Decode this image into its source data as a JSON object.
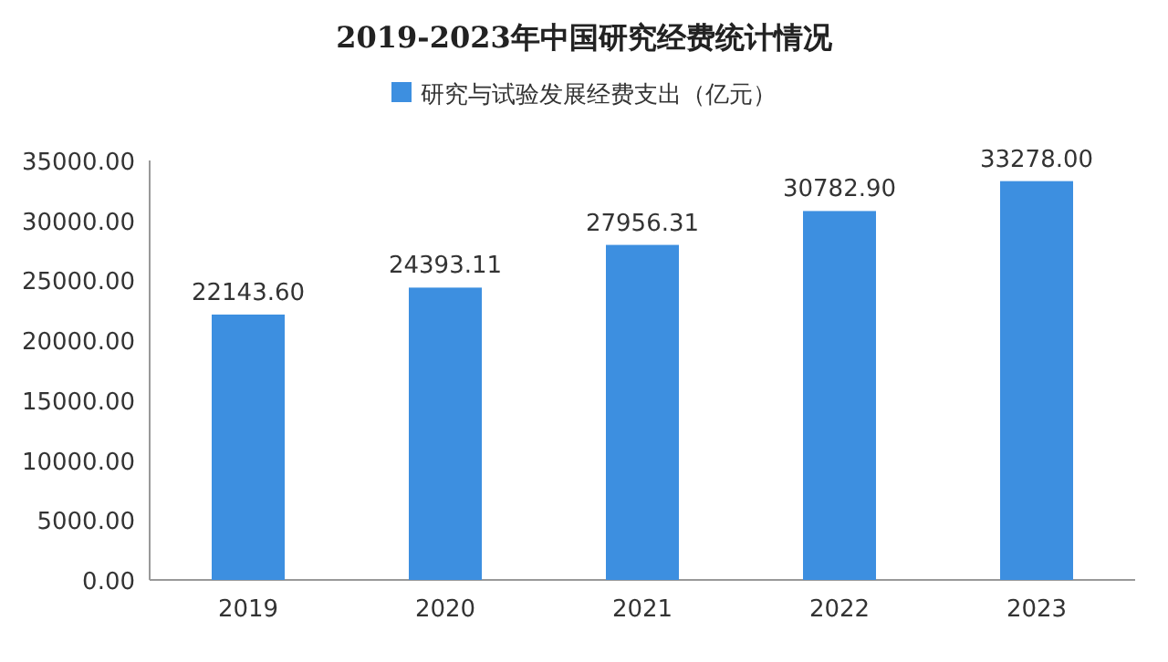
{
  "chart_data": {
    "type": "bar",
    "title": "2019-2023年中国研究经费统计情况",
    "categories": [
      "2019",
      "2020",
      "2021",
      "2022",
      "2023"
    ],
    "series": [
      {
        "name": "研究与试验发展经费支出（亿元）",
        "color": "#3d8fe0",
        "values": [
          22143.6,
          24393.11,
          27956.31,
          30782.9,
          33278.0
        ],
        "value_labels": [
          "22143.60",
          "24393.11",
          "27956.31",
          "30782.90",
          "33278.00"
        ]
      }
    ],
    "ylim": [
      0,
      35000
    ],
    "yticks": [
      {
        "value": 0,
        "label": "0.00"
      },
      {
        "value": 5000,
        "label": "5000.00"
      },
      {
        "value": 10000,
        "label": "10000.00"
      },
      {
        "value": 15000,
        "label": "15000.00"
      },
      {
        "value": 20000,
        "label": "20000.00"
      },
      {
        "value": 25000,
        "label": "25000.00"
      },
      {
        "value": 30000,
        "label": "30000.00"
      },
      {
        "value": 35000,
        "label": "35000.00"
      }
    ],
    "legend": "top"
  }
}
